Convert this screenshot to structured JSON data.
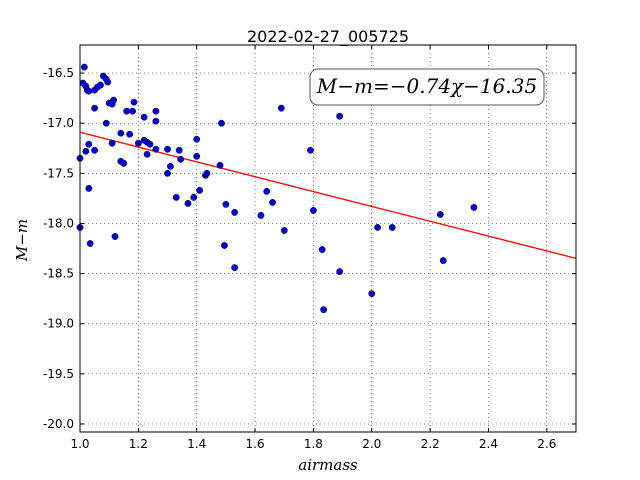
{
  "chart_data": {
    "type": "scatter",
    "title": "2022-02-27_005725",
    "xlabel": "airmass",
    "ylabel": "M−m",
    "xlim": [
      1.0,
      2.7
    ],
    "ylim": [
      -20.08,
      -16.22
    ],
    "xticks": [
      "1.0",
      "1.2",
      "1.4",
      "1.6",
      "1.8",
      "2.0",
      "2.2",
      "2.4",
      "2.6"
    ],
    "yticks": [
      "-16.5",
      "-17.0",
      "-17.5",
      "-18.0",
      "-18.5",
      "-19.0",
      "-19.5",
      "-20.0"
    ],
    "grid": true,
    "annotation": "M−m=−0.74χ−16.35",
    "fit": {
      "slope": -0.74,
      "intercept": -16.35,
      "color": "#ff0000"
    },
    "point_color": "#0000cc",
    "points": [
      [
        1.01,
        -16.6
      ],
      [
        1.015,
        -16.44
      ],
      [
        1.02,
        -16.63
      ],
      [
        1.025,
        -16.67
      ],
      [
        1.03,
        -16.68
      ],
      [
        1.05,
        -16.67
      ],
      [
        1.06,
        -16.64
      ],
      [
        1.07,
        -16.62
      ],
      [
        1.08,
        -16.53
      ],
      [
        1.09,
        -16.56
      ],
      [
        1.095,
        -16.59
      ],
      [
        1.05,
        -16.85
      ],
      [
        1.1,
        -16.8
      ],
      [
        1.11,
        -16.81
      ],
      [
        1.115,
        -16.77
      ],
      [
        1.09,
        -17.0
      ],
      [
        1.16,
        -16.88
      ],
      [
        1.18,
        -16.88
      ],
      [
        1.185,
        -16.79
      ],
      [
        1.22,
        -16.94
      ],
      [
        1.26,
        -16.88
      ],
      [
        1.26,
        -16.98
      ],
      [
        1.0,
        -17.35
      ],
      [
        1.02,
        -17.28
      ],
      [
        1.03,
        -17.21
      ],
      [
        1.05,
        -17.27
      ],
      [
        1.11,
        -17.2
      ],
      [
        1.14,
        -17.1
      ],
      [
        1.17,
        -17.11
      ],
      [
        1.2,
        -17.2
      ],
      [
        1.22,
        -17.17
      ],
      [
        1.23,
        -17.19
      ],
      [
        1.24,
        -17.21
      ],
      [
        1.26,
        -17.26
      ],
      [
        1.3,
        -17.26
      ],
      [
        1.31,
        -17.43
      ],
      [
        1.3,
        -17.5
      ],
      [
        1.23,
        -17.31
      ],
      [
        1.34,
        -17.27
      ],
      [
        1.345,
        -17.36
      ],
      [
        1.4,
        -17.16
      ],
      [
        1.4,
        -17.33
      ],
      [
        1.43,
        -17.52
      ],
      [
        1.435,
        -17.5
      ],
      [
        1.48,
        -17.42
      ],
      [
        1.485,
        -17.0
      ],
      [
        1.14,
        -17.38
      ],
      [
        1.15,
        -17.4
      ],
      [
        1.03,
        -17.65
      ],
      [
        1.33,
        -17.74
      ],
      [
        1.37,
        -17.8
      ],
      [
        1.39,
        -17.74
      ],
      [
        1.41,
        -17.67
      ],
      [
        1.5,
        -17.81
      ],
      [
        1.53,
        -17.89
      ],
      [
        1.62,
        -17.92
      ],
      [
        1.64,
        -17.68
      ],
      [
        1.66,
        -17.79
      ],
      [
        1.7,
        -18.07
      ],
      [
        1.69,
        -16.85
      ],
      [
        1.79,
        -17.27
      ],
      [
        1.8,
        -17.87
      ],
      [
        1.89,
        -16.93
      ],
      [
        1.0,
        -18.04
      ],
      [
        1.035,
        -18.2
      ],
      [
        1.12,
        -18.13
      ],
      [
        1.495,
        -18.22
      ],
      [
        1.53,
        -18.44
      ],
      [
        1.83,
        -18.26
      ],
      [
        1.89,
        -18.48
      ],
      [
        1.835,
        -18.86
      ],
      [
        2.0,
        -18.7
      ],
      [
        2.02,
        -18.04
      ],
      [
        2.07,
        -18.04
      ],
      [
        2.18,
        -16.79
      ],
      [
        2.235,
        -17.91
      ],
      [
        2.245,
        -18.37
      ],
      [
        2.35,
        -17.84
      ]
    ]
  }
}
